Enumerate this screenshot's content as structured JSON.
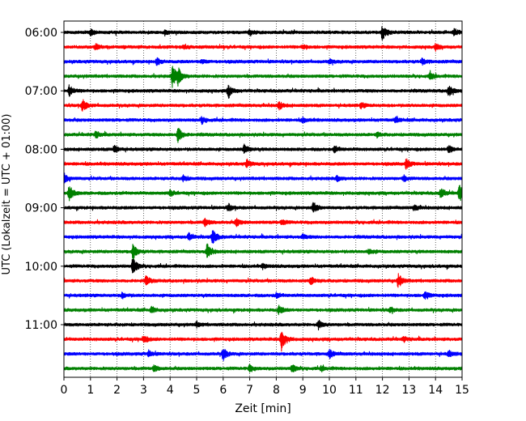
{
  "chart_data": {
    "type": "line",
    "xlabel": "Zeit  [min]",
    "ylabel": "UTC (Lokalzeit = UTC + 01:00)",
    "xlim": [
      0,
      15
    ],
    "x_ticks": [
      "0",
      "1",
      "2",
      "3",
      "4",
      "5",
      "6",
      "7",
      "8",
      "9",
      "10",
      "11",
      "12",
      "13",
      "14",
      "15"
    ],
    "y_ticks": [
      "06:00",
      "07:00",
      "08:00",
      "09:00",
      "10:00",
      "11:00"
    ],
    "grid": "vertical dotted lines at every minute",
    "trace_colors": [
      "#000000",
      "#ff0000",
      "#0000ff",
      "#008000"
    ],
    "series": [
      {
        "start": "06:00",
        "events": [
          {
            "t": 1.0,
            "a": 0.4
          },
          {
            "t": 3.8,
            "a": 0.3
          },
          {
            "t": 7.0,
            "a": 0.35
          },
          {
            "t": 12.0,
            "a": 1.0
          },
          {
            "t": 14.7,
            "a": 0.45
          }
        ]
      },
      {
        "start": "06:15",
        "events": [
          {
            "t": 1.2,
            "a": 0.35
          },
          {
            "t": 4.5,
            "a": 0.3
          },
          {
            "t": 9.0,
            "a": 0.3
          },
          {
            "t": 14.0,
            "a": 0.35
          }
        ]
      },
      {
        "start": "06:30",
        "events": [
          {
            "t": 3.5,
            "a": 0.45
          },
          {
            "t": 5.2,
            "a": 0.3
          },
          {
            "t": 10.0,
            "a": 0.3
          },
          {
            "t": 13.5,
            "a": 0.4
          }
        ]
      },
      {
        "start": "06:45",
        "events": [
          {
            "t": 4.1,
            "a": 1.6
          },
          {
            "t": 4.3,
            "a": 0.9
          },
          {
            "t": 13.8,
            "a": 0.45
          }
        ]
      },
      {
        "start": "07:00",
        "events": [
          {
            "t": 0.2,
            "a": 0.7
          },
          {
            "t": 6.2,
            "a": 0.85
          },
          {
            "t": 14.5,
            "a": 0.8
          }
        ]
      },
      {
        "start": "07:15",
        "events": [
          {
            "t": 0.7,
            "a": 0.85
          },
          {
            "t": 8.1,
            "a": 0.5
          },
          {
            "t": 11.2,
            "a": 0.35
          }
        ]
      },
      {
        "start": "07:30",
        "events": [
          {
            "t": 5.2,
            "a": 0.4
          },
          {
            "t": 9.0,
            "a": 0.3
          },
          {
            "t": 12.5,
            "a": 0.35
          }
        ]
      },
      {
        "start": "07:45",
        "events": [
          {
            "t": 1.2,
            "a": 0.45
          },
          {
            "t": 4.3,
            "a": 1.1
          },
          {
            "t": 11.8,
            "a": 0.3
          }
        ]
      },
      {
        "start": "08:00",
        "events": [
          {
            "t": 1.9,
            "a": 0.5
          },
          {
            "t": 6.8,
            "a": 0.65
          },
          {
            "t": 10.2,
            "a": 0.4
          },
          {
            "t": 14.5,
            "a": 0.45
          }
        ]
      },
      {
        "start": "08:15",
        "events": [
          {
            "t": 6.9,
            "a": 0.5
          },
          {
            "t": 12.9,
            "a": 0.65
          }
        ]
      },
      {
        "start": "08:30",
        "events": [
          {
            "t": 0.0,
            "a": 0.7
          },
          {
            "t": 4.5,
            "a": 0.35
          },
          {
            "t": 10.3,
            "a": 0.3
          },
          {
            "t": 12.8,
            "a": 0.35
          }
        ]
      },
      {
        "start": "08:45",
        "events": [
          {
            "t": 0.2,
            "a": 1.1
          },
          {
            "t": 4.0,
            "a": 0.35
          },
          {
            "t": 14.2,
            "a": 0.65
          },
          {
            "t": 14.9,
            "a": 1.2
          }
        ]
      },
      {
        "start": "09:00",
        "events": [
          {
            "t": 6.2,
            "a": 0.45
          },
          {
            "t": 9.4,
            "a": 0.7
          },
          {
            "t": 13.2,
            "a": 0.4
          }
        ]
      },
      {
        "start": "09:15",
        "events": [
          {
            "t": 5.3,
            "a": 0.55
          },
          {
            "t": 6.5,
            "a": 0.5
          },
          {
            "t": 8.2,
            "a": 0.35
          }
        ]
      },
      {
        "start": "09:30",
        "events": [
          {
            "t": 4.7,
            "a": 0.5
          },
          {
            "t": 5.6,
            "a": 1.1
          },
          {
            "t": 9.0,
            "a": 0.3
          }
        ]
      },
      {
        "start": "09:45",
        "events": [
          {
            "t": 2.6,
            "a": 1.1
          },
          {
            "t": 5.4,
            "a": 1.0
          },
          {
            "t": 11.5,
            "a": 0.35
          }
        ]
      },
      {
        "start": "10:00",
        "events": [
          {
            "t": 2.6,
            "a": 1.2
          },
          {
            "t": 7.5,
            "a": 0.3
          }
        ]
      },
      {
        "start": "10:15",
        "events": [
          {
            "t": 3.1,
            "a": 0.6
          },
          {
            "t": 9.3,
            "a": 0.55
          },
          {
            "t": 12.6,
            "a": 0.9
          }
        ]
      },
      {
        "start": "10:30",
        "events": [
          {
            "t": 2.2,
            "a": 0.35
          },
          {
            "t": 8.0,
            "a": 0.3
          },
          {
            "t": 13.6,
            "a": 0.5
          }
        ]
      },
      {
        "start": "10:45",
        "events": [
          {
            "t": 3.3,
            "a": 0.4
          },
          {
            "t": 8.1,
            "a": 0.55
          },
          {
            "t": 12.3,
            "a": 0.35
          }
        ]
      },
      {
        "start": "11:00",
        "events": [
          {
            "t": 9.6,
            "a": 0.55
          },
          {
            "t": 5.0,
            "a": 0.3
          }
        ]
      },
      {
        "start": "11:15",
        "events": [
          {
            "t": 3.0,
            "a": 0.5
          },
          {
            "t": 8.2,
            "a": 1.5
          },
          {
            "t": 12.8,
            "a": 0.3
          }
        ]
      },
      {
        "start": "11:30",
        "events": [
          {
            "t": 3.2,
            "a": 0.4
          },
          {
            "t": 6.0,
            "a": 0.85
          },
          {
            "t": 10.0,
            "a": 0.55
          },
          {
            "t": 14.5,
            "a": 0.4
          }
        ]
      },
      {
        "start": "11:45",
        "events": [
          {
            "t": 3.4,
            "a": 0.4
          },
          {
            "t": 7.0,
            "a": 0.45
          },
          {
            "t": 8.6,
            "a": 0.5
          },
          {
            "t": 9.7,
            "a": 0.3
          }
        ]
      }
    ]
  }
}
